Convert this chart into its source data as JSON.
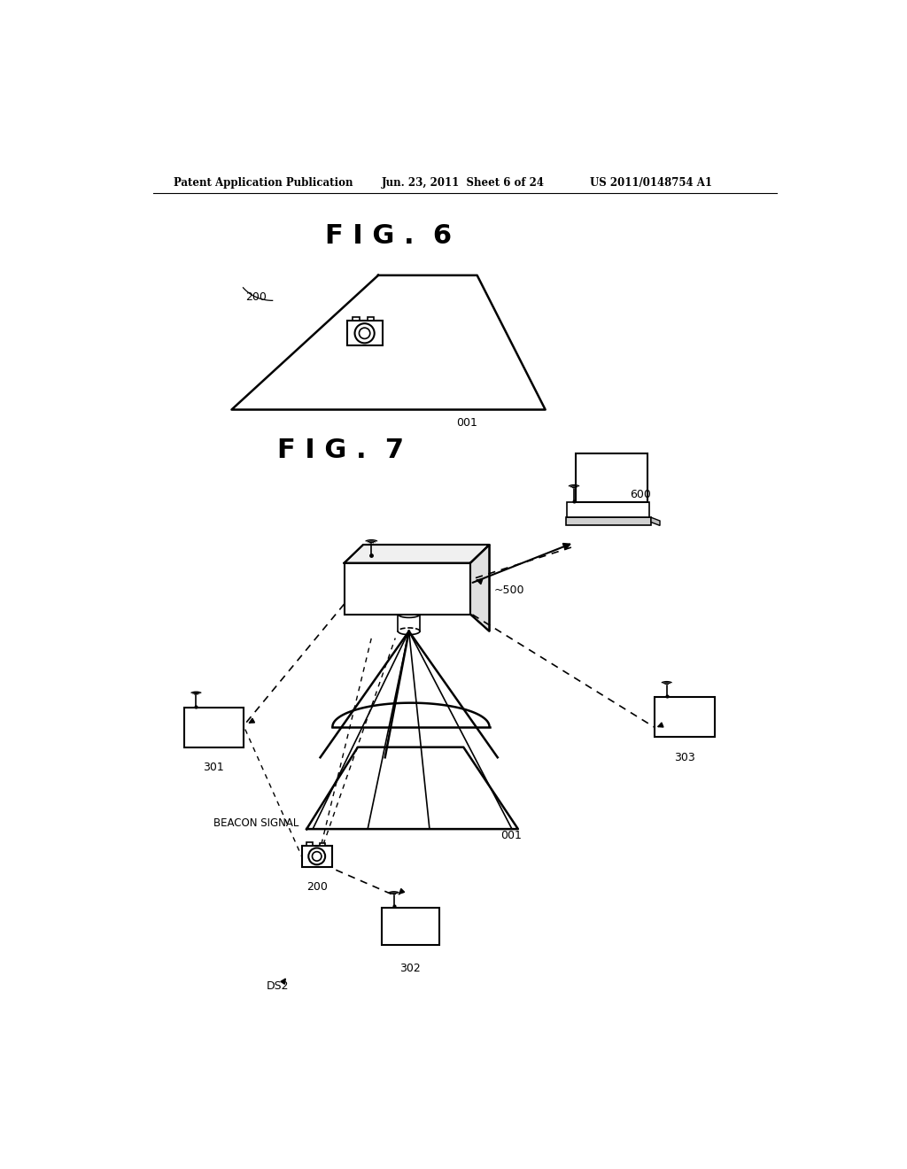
{
  "bg_color": "#ffffff",
  "header_left": "Patent Application Publication",
  "header_mid": "Jun. 23, 2011  Sheet 6 of 24",
  "header_right": "US 2011/0148754 A1",
  "fig6_title": "F I G .  6",
  "fig7_title": "F I G .  7",
  "label_001_fig6": "001",
  "label_200_fig6": "200",
  "label_001_fig7": "001",
  "label_200_fig7": "200",
  "label_301": "301",
  "label_302": "302",
  "label_303": "303",
  "label_500": "~500",
  "label_600": "600",
  "label_beacon": "BEACON SIGNAL",
  "label_ds2": "DS2"
}
